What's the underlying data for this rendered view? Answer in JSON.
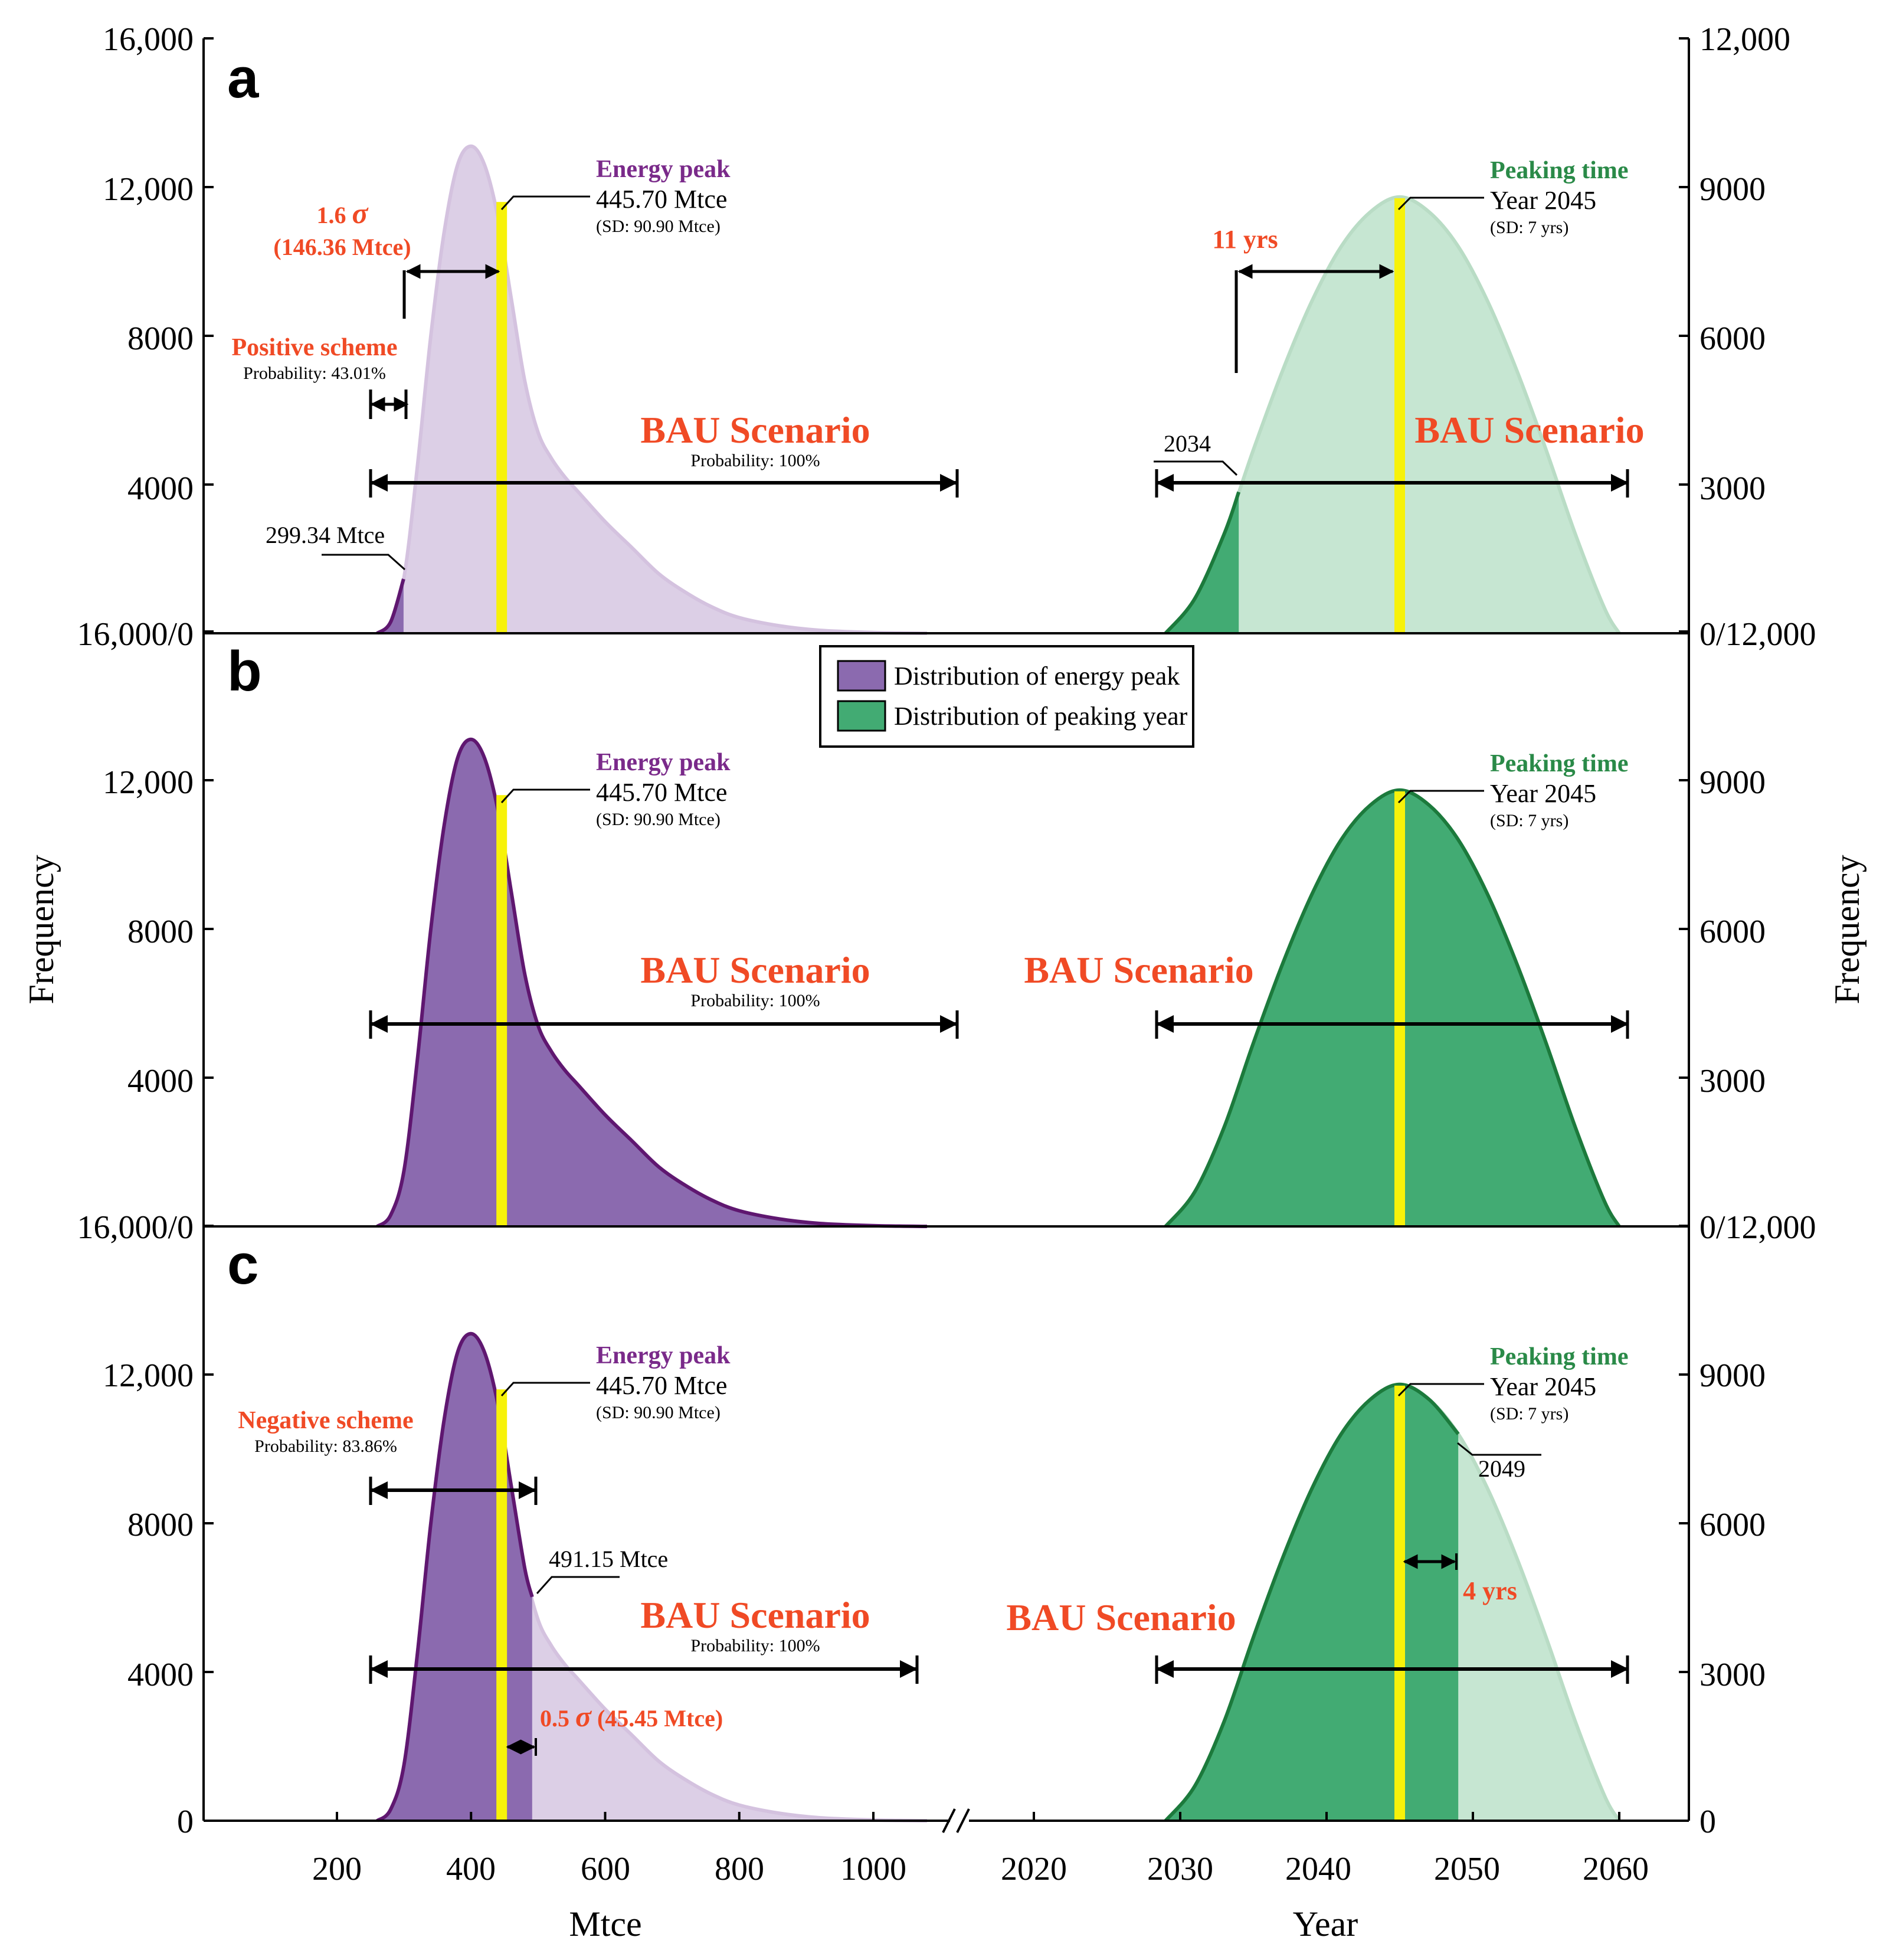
{
  "colors": {
    "purple_fill": "#8b6aaf",
    "purple_light": "#dccfe6",
    "purple_line": "#5f1770",
    "purple_text": "#7a2a8a",
    "green_fill": "#42ab73",
    "green_light": "#c6e6d2",
    "green_line": "#1c7a3c",
    "green_text": "#2a8a48",
    "yellow": "#f7f20a",
    "red": "#f04a25",
    "black": "#000000"
  },
  "left_axis": {
    "label": "Frequency",
    "ticks": [
      "16,000/0",
      "4000",
      "8000",
      "12,000",
      "16,000"
    ],
    "bottom_tick_c": "0"
  },
  "right_axis": {
    "label": "Frequency",
    "ticks": [
      "0/12,000",
      "3000",
      "6000",
      "9000",
      "12,000"
    ],
    "bottom_tick_c": "0"
  },
  "x_axis_left": {
    "label": "Mtce",
    "ticks": [
      "200",
      "400",
      "600",
      "800",
      "1000"
    ]
  },
  "x_axis_right": {
    "label": "Year",
    "ticks": [
      "2020",
      "2030",
      "2040",
      "2050",
      "2060"
    ]
  },
  "legend": {
    "energy": "Distribution of energy peak",
    "year": "Distribution of peaking year"
  },
  "panels": {
    "a": {
      "letter": "a",
      "energy_peak_title": "Energy peak",
      "energy_peak_value": "445.70 Mtce",
      "energy_peak_sd": "(SD: 90.90 Mtce)",
      "peaking_title": "Peaking time",
      "peaking_value": "Year 2045",
      "peaking_sd": "(SD: 7 yrs)",
      "sigma_coef": "1.6",
      "sigma_value": "(146.36 Mtce)",
      "scheme_title": "Positive scheme",
      "scheme_prob": "Probability: 43.01%",
      "bau_left": "BAU Scenario",
      "bau_prob": "Probability: 100%",
      "bau_right": "BAU Scenario",
      "threshold_energy": "299.34 Mtce",
      "threshold_year": "2034",
      "year_gap": "11 yrs"
    },
    "b": {
      "letter": "b",
      "energy_peak_title": "Energy peak",
      "energy_peak_value": "445.70 Mtce",
      "energy_peak_sd": "(SD: 90.90 Mtce)",
      "peaking_title": "Peaking time",
      "peaking_value": "Year 2045",
      "peaking_sd": "(SD: 7 yrs)",
      "bau_left": "BAU Scenario",
      "bau_prob": "Probability: 100%",
      "bau_right": "BAU Scenario"
    },
    "c": {
      "letter": "c",
      "energy_peak_title": "Energy peak",
      "energy_peak_value": "445.70 Mtce",
      "energy_peak_sd": "(SD: 90.90 Mtce)",
      "peaking_title": "Peaking time",
      "peaking_value": "Year 2045",
      "peaking_sd": "(SD: 7 yrs)",
      "scheme_title": "Negative scheme",
      "scheme_prob": "Probability: 83.86%",
      "threshold_energy": "491.15 Mtce",
      "sigma_coef": "0.5",
      "sigma_value": "(45.45 Mtce)",
      "bau_left": "BAU Scenario",
      "bau_prob": "Probability: 100%",
      "bau_right": "BAU Scenario",
      "threshold_year": "2049",
      "year_gap": "4 yrs"
    }
  },
  "chart_data": {
    "type": "area",
    "panels": [
      "a",
      "b",
      "c"
    ],
    "energy_distribution": {
      "x_unit": "Mtce",
      "x": [
        260,
        280,
        300,
        320,
        340,
        360,
        380,
        400,
        420,
        440,
        460,
        480,
        500,
        520,
        540,
        560,
        600,
        640,
        680,
        720,
        760,
        800,
        860,
        920,
        1000,
        1080
      ],
      "frequency": [
        0,
        300,
        1500,
        4500,
        8000,
        10800,
        12600,
        13100,
        12600,
        11200,
        9000,
        6800,
        5400,
        4700,
        4200,
        3800,
        3000,
        2300,
        1600,
        1100,
        700,
        420,
        200,
        80,
        20,
        0
      ],
      "ylim": [
        0,
        16000
      ],
      "peak_mean": 445.7,
      "sd": 90.9
    },
    "year_distribution": {
      "x_unit": "Year",
      "x": [
        2029,
        2031,
        2033,
        2035,
        2037,
        2039,
        2041,
        2043,
        2045,
        2047,
        2049,
        2051,
        2053,
        2055,
        2057,
        2059,
        2060
      ],
      "frequency": [
        0,
        700,
        2000,
        3700,
        5300,
        6700,
        7800,
        8500,
        8800,
        8500,
        7800,
        6700,
        5300,
        3700,
        2000,
        500,
        0
      ],
      "ylim": [
        0,
        12000
      ],
      "peak_mean": 2045,
      "sd": 7
    },
    "thresholds": {
      "a": {
        "energy": 299.34,
        "year": 2034
      },
      "c": {
        "energy": 491.15,
        "year": 2049
      }
    },
    "xticks_energy": [
      200,
      400,
      600,
      800,
      1000
    ],
    "xticks_year": [
      2020,
      2030,
      2040,
      2050,
      2060
    ],
    "yticks_left": [
      0,
      4000,
      8000,
      12000,
      16000
    ],
    "yticks_right": [
      0,
      3000,
      6000,
      9000,
      12000
    ]
  }
}
